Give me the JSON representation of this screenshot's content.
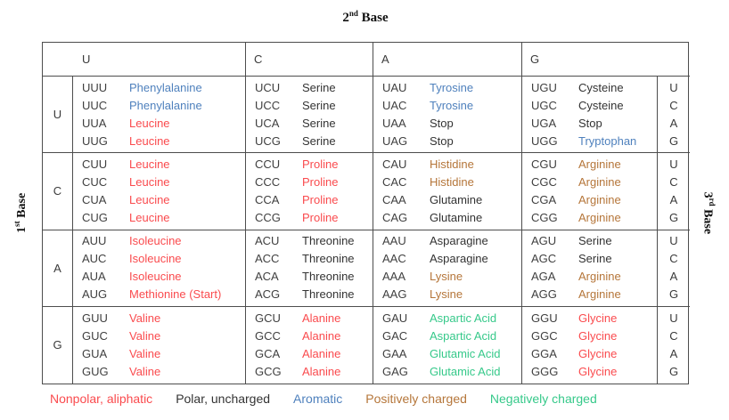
{
  "title": {
    "num": "2",
    "ord": "nd",
    "word": "Base"
  },
  "left_axis": {
    "num": "1",
    "ord": "st",
    "word": "Base"
  },
  "right_axis": {
    "num": "3",
    "ord": "rd",
    "word": "Base"
  },
  "column_headers": [
    "U",
    "C",
    "A",
    "G"
  ],
  "third_base_letters": [
    "U",
    "C",
    "A",
    "G"
  ],
  "colors": {
    "codon": "#404040",
    "border": "#4d4d4d",
    "nonpolar": "#fa4b4e",
    "polar": "#333333",
    "stop": "#333333",
    "aromatic": "#4f81bd",
    "positive": "#b5763a",
    "negative": "#36c98a"
  },
  "rows": [
    {
      "first_base": "U",
      "cells": [
        [
          {
            "codon": "UUU",
            "amino": "Phenylalanine",
            "category": "aromatic"
          },
          {
            "codon": "UUC",
            "amino": "Phenylalanine",
            "category": "aromatic"
          },
          {
            "codon": "UUA",
            "amino": "Leucine",
            "category": "nonpolar"
          },
          {
            "codon": "UUG",
            "amino": "Leucine",
            "category": "nonpolar"
          }
        ],
        [
          {
            "codon": "UCU",
            "amino": "Serine",
            "category": "polar"
          },
          {
            "codon": "UCC",
            "amino": "Serine",
            "category": "polar"
          },
          {
            "codon": "UCA",
            "amino": "Serine",
            "category": "polar"
          },
          {
            "codon": "UCG",
            "amino": "Serine",
            "category": "polar"
          }
        ],
        [
          {
            "codon": "UAU",
            "amino": "Tyrosine",
            "category": "aromatic"
          },
          {
            "codon": "UAC",
            "amino": "Tyrosine",
            "category": "aromatic"
          },
          {
            "codon": "UAA",
            "amino": "Stop",
            "category": "stop"
          },
          {
            "codon": "UAG",
            "amino": "Stop",
            "category": "stop"
          }
        ],
        [
          {
            "codon": "UGU",
            "amino": "Cysteine",
            "category": "polar"
          },
          {
            "codon": "UGC",
            "amino": "Cysteine",
            "category": "polar"
          },
          {
            "codon": "UGA",
            "amino": "Stop",
            "category": "stop"
          },
          {
            "codon": "UGG",
            "amino": "Tryptophan",
            "category": "aromatic"
          }
        ]
      ]
    },
    {
      "first_base": "C",
      "cells": [
        [
          {
            "codon": "CUU",
            "amino": "Leucine",
            "category": "nonpolar"
          },
          {
            "codon": "CUC",
            "amino": "Leucine",
            "category": "nonpolar"
          },
          {
            "codon": "CUA",
            "amino": "Leucine",
            "category": "nonpolar"
          },
          {
            "codon": "CUG",
            "amino": "Leucine",
            "category": "nonpolar"
          }
        ],
        [
          {
            "codon": "CCU",
            "amino": "Proline",
            "category": "nonpolar"
          },
          {
            "codon": "CCC",
            "amino": "Proline",
            "category": "nonpolar"
          },
          {
            "codon": "CCA",
            "amino": "Proline",
            "category": "nonpolar"
          },
          {
            "codon": "CCG",
            "amino": "Proline",
            "category": "nonpolar"
          }
        ],
        [
          {
            "codon": "CAU",
            "amino": "Histidine",
            "category": "positive"
          },
          {
            "codon": "CAC",
            "amino": "Histidine",
            "category": "positive"
          },
          {
            "codon": "CAA",
            "amino": "Glutamine",
            "category": "polar"
          },
          {
            "codon": "CAG",
            "amino": "Glutamine",
            "category": "polar"
          }
        ],
        [
          {
            "codon": "CGU",
            "amino": "Arginine",
            "category": "positive"
          },
          {
            "codon": "CGC",
            "amino": "Arginine",
            "category": "positive"
          },
          {
            "codon": "CGA",
            "amino": "Arginine",
            "category": "positive"
          },
          {
            "codon": "CGG",
            "amino": "Arginine",
            "category": "positive"
          }
        ]
      ]
    },
    {
      "first_base": "A",
      "cells": [
        [
          {
            "codon": "AUU",
            "amino": "Isoleucine",
            "category": "nonpolar"
          },
          {
            "codon": "AUC",
            "amino": "Isoleucine",
            "category": "nonpolar"
          },
          {
            "codon": "AUA",
            "amino": "Isoleucine",
            "category": "nonpolar"
          },
          {
            "codon": "AUG",
            "amino": "Methionine (Start)",
            "category": "nonpolar"
          }
        ],
        [
          {
            "codon": "ACU",
            "amino": "Threonine",
            "category": "polar"
          },
          {
            "codon": "ACC",
            "amino": "Threonine",
            "category": "polar"
          },
          {
            "codon": "ACA",
            "amino": "Threonine",
            "category": "polar"
          },
          {
            "codon": "ACG",
            "amino": "Threonine",
            "category": "polar"
          }
        ],
        [
          {
            "codon": "AAU",
            "amino": "Asparagine",
            "category": "polar"
          },
          {
            "codon": "AAC",
            "amino": "Asparagine",
            "category": "polar"
          },
          {
            "codon": "AAA",
            "amino": "Lysine",
            "category": "positive"
          },
          {
            "codon": "AAG",
            "amino": "Lysine",
            "category": "positive"
          }
        ],
        [
          {
            "codon": "AGU",
            "amino": "Serine",
            "category": "polar"
          },
          {
            "codon": "AGC",
            "amino": "Serine",
            "category": "polar"
          },
          {
            "codon": "AGA",
            "amino": "Arginine",
            "category": "positive"
          },
          {
            "codon": "AGG",
            "amino": "Arginine",
            "category": "positive"
          }
        ]
      ]
    },
    {
      "first_base": "G",
      "cells": [
        [
          {
            "codon": "GUU",
            "amino": "Valine",
            "category": "nonpolar"
          },
          {
            "codon": "GUC",
            "amino": "Valine",
            "category": "nonpolar"
          },
          {
            "codon": "GUA",
            "amino": "Valine",
            "category": "nonpolar"
          },
          {
            "codon": "GUG",
            "amino": "Valine",
            "category": "nonpolar"
          }
        ],
        [
          {
            "codon": "GCU",
            "amino": "Alanine",
            "category": "nonpolar"
          },
          {
            "codon": "GCC",
            "amino": "Alanine",
            "category": "nonpolar"
          },
          {
            "codon": "GCA",
            "amino": "Alanine",
            "category": "nonpolar"
          },
          {
            "codon": "GCG",
            "amino": "Alanine",
            "category": "nonpolar"
          }
        ],
        [
          {
            "codon": "GAU",
            "amino": "Aspartic Acid",
            "category": "negative"
          },
          {
            "codon": "GAC",
            "amino": "Aspartic Acid",
            "category": "negative"
          },
          {
            "codon": "GAA",
            "amino": "Glutamic Acid",
            "category": "negative"
          },
          {
            "codon": "GAG",
            "amino": "Glutamic Acid",
            "category": "negative"
          }
        ],
        [
          {
            "codon": "GGU",
            "amino": "Glycine",
            "category": "nonpolar"
          },
          {
            "codon": "GGC",
            "amino": "Glycine",
            "category": "nonpolar"
          },
          {
            "codon": "GGA",
            "amino": "Glycine",
            "category": "nonpolar"
          },
          {
            "codon": "GGG",
            "amino": "Glycine",
            "category": "nonpolar"
          }
        ]
      ]
    }
  ],
  "legend": [
    {
      "label": "Nonpolar, aliphatic",
      "category": "nonpolar"
    },
    {
      "label": "Polar, uncharged",
      "category": "polar"
    },
    {
      "label": "Aromatic",
      "category": "aromatic"
    },
    {
      "label": "Positively charged",
      "category": "positive"
    },
    {
      "label": "Negatively charged",
      "category": "negative"
    }
  ]
}
